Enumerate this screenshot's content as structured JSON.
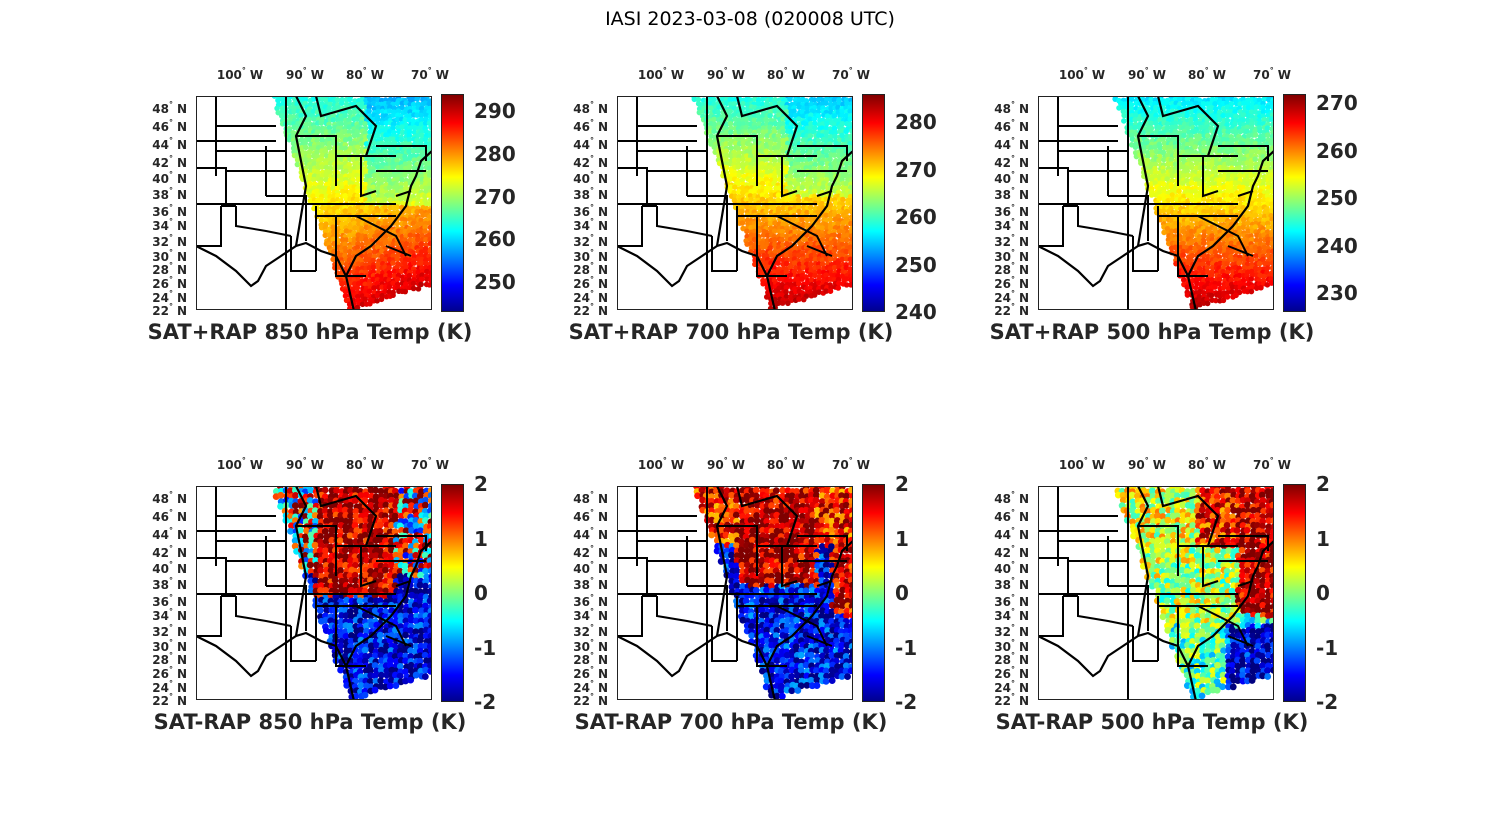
{
  "title": "IASI 2023-03-08 (020008 UTC)",
  "colormap": "jet",
  "lon_labels": [
    "100",
    "90",
    "80",
    "70"
  ],
  "lon_suffix": "W",
  "lat_labels": [
    "48",
    "46",
    "44",
    "42",
    "40",
    "38",
    "36",
    "34",
    "32",
    "30",
    "28",
    "26",
    "24",
    "22"
  ],
  "lat_suffix": "N",
  "degree_symbol": "°",
  "chart_data": [
    {
      "type": "heatmap",
      "title": "SAT+RAP 850 hPa Temp (K)",
      "clim": [
        243,
        294
      ],
      "colorbar_ticks": [
        "250",
        "260",
        "270",
        "280",
        "290"
      ],
      "tick_values": [
        250,
        260,
        270,
        280,
        290
      ]
    },
    {
      "type": "heatmap",
      "title": "SAT+RAP 700 hPa Temp (K)",
      "clim": [
        240,
        286
      ],
      "colorbar_ticks": [
        "240",
        "250",
        "260",
        "270",
        "280"
      ],
      "tick_values": [
        240,
        250,
        260,
        270,
        280
      ]
    },
    {
      "type": "heatmap",
      "title": "SAT+RAP 500 hPa Temp (K)",
      "clim": [
        226,
        272
      ],
      "colorbar_ticks": [
        "230",
        "240",
        "250",
        "260",
        "270"
      ],
      "tick_values": [
        230,
        240,
        250,
        260,
        270
      ]
    },
    {
      "type": "heatmap",
      "title": "SAT-RAP 850 hPa Temp (K)",
      "clim": [
        -2,
        2
      ],
      "colorbar_ticks": [
        "-2",
        "-1",
        "0",
        "1",
        "2"
      ],
      "tick_values": [
        -2,
        -1,
        0,
        1,
        2
      ]
    },
    {
      "type": "heatmap",
      "title": "SAT-RAP 700 hPa Temp (K)",
      "clim": [
        -2,
        2
      ],
      "colorbar_ticks": [
        "-2",
        "-1",
        "0",
        "1",
        "2"
      ],
      "tick_values": [
        -2,
        -1,
        0,
        1,
        2
      ]
    },
    {
      "type": "heatmap",
      "title": "SAT-RAP 500 hPa Temp (K)",
      "clim": [
        -2,
        2
      ],
      "colorbar_ticks": [
        "-2",
        "-1",
        "0",
        "1",
        "2"
      ],
      "tick_values": [
        -2,
        -1,
        0,
        1,
        2
      ]
    }
  ]
}
